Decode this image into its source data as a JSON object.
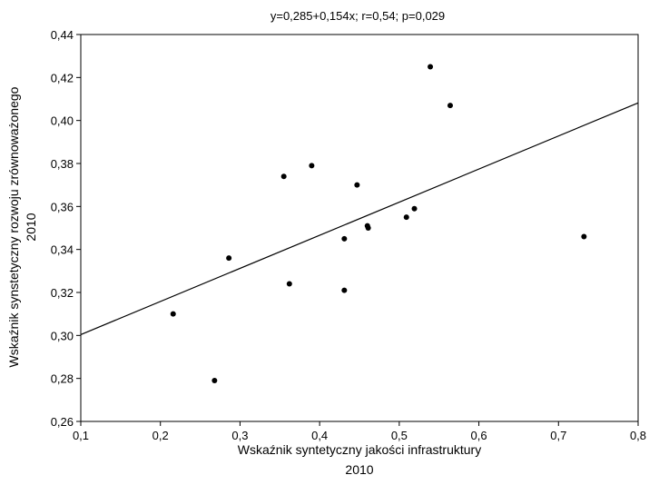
{
  "chart_data": {
    "type": "scatter",
    "title": "y=0,285+0,154x; r=0,54; p=0,029",
    "xlabel_lines": [
      "Wskaźnik syntetyczny jakości infrastruktury",
      "2010"
    ],
    "ylabel_lines": [
      "Wskaźnik synstetyczny rozwoju zrównoważonego",
      "2010"
    ],
    "xlim": [
      0.1,
      0.8
    ],
    "ylim": [
      0.26,
      0.44
    ],
    "x_ticks": [
      0.1,
      0.2,
      0.3,
      0.4,
      0.5,
      0.6,
      0.7,
      0.8
    ],
    "x_tick_labels": [
      "0,1",
      "0,2",
      "0,3",
      "0,4",
      "0,5",
      "0,6",
      "0,7",
      "0,8"
    ],
    "y_ticks": [
      0.26,
      0.28,
      0.3,
      0.32,
      0.34,
      0.36,
      0.38,
      0.4,
      0.42,
      0.44
    ],
    "y_tick_labels": [
      "0,26",
      "0,28",
      "0,30",
      "0,32",
      "0,34",
      "0,36",
      "0,38",
      "0,40",
      "0,42",
      "0,44"
    ],
    "grid": false,
    "regression": {
      "intercept": 0.285,
      "slope": 0.154
    },
    "points": [
      {
        "x": 0.216,
        "y": 0.31
      },
      {
        "x": 0.268,
        "y": 0.279
      },
      {
        "x": 0.286,
        "y": 0.336
      },
      {
        "x": 0.355,
        "y": 0.374
      },
      {
        "x": 0.362,
        "y": 0.324
      },
      {
        "x": 0.39,
        "y": 0.379
      },
      {
        "x": 0.431,
        "y": 0.345
      },
      {
        "x": 0.431,
        "y": 0.321
      },
      {
        "x": 0.447,
        "y": 0.37
      },
      {
        "x": 0.46,
        "y": 0.351
      },
      {
        "x": 0.461,
        "y": 0.35
      },
      {
        "x": 0.509,
        "y": 0.355
      },
      {
        "x": 0.519,
        "y": 0.359
      },
      {
        "x": 0.539,
        "y": 0.425
      },
      {
        "x": 0.564,
        "y": 0.407
      },
      {
        "x": 0.732,
        "y": 0.346
      }
    ],
    "colors": {
      "marker": "#000000",
      "line": "#000000",
      "axis": "#000000"
    }
  }
}
